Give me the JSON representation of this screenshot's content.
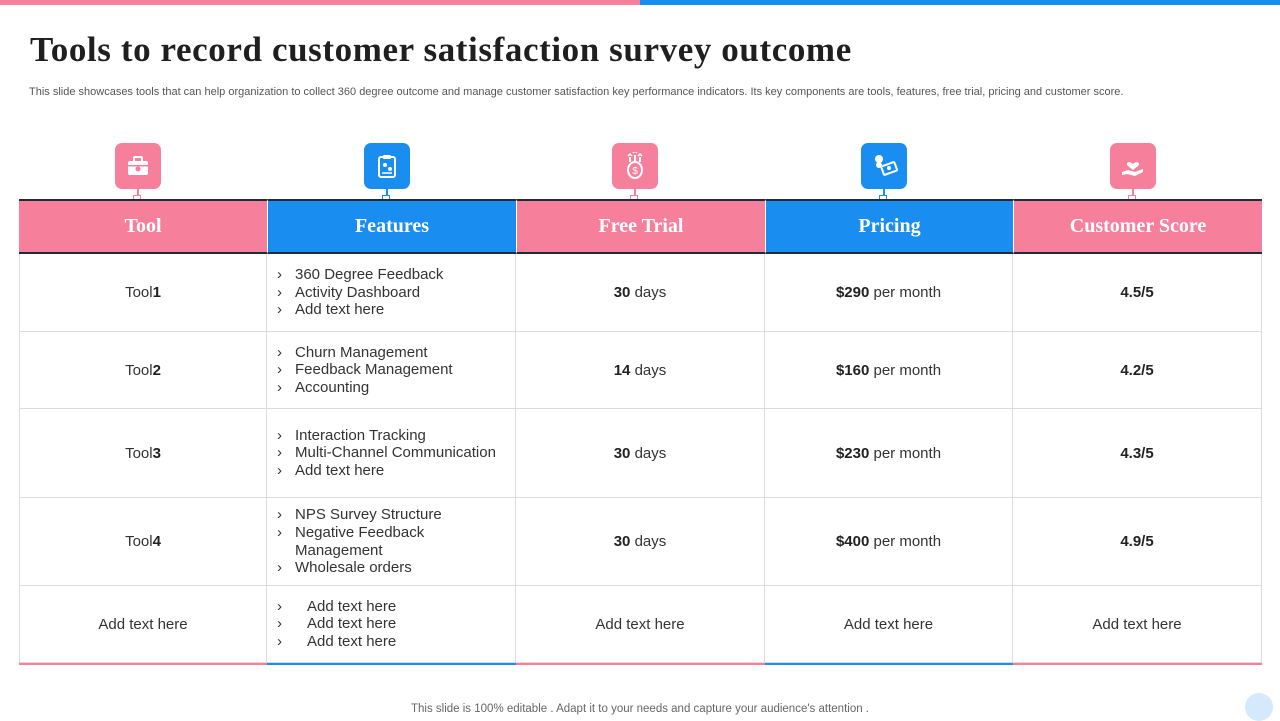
{
  "slide": {
    "title": "Tools to record customer satisfaction survey outcome",
    "subtitle": "This slide showcases tools that can help organization to collect 360 degree outcome and manage customer satisfaction key performance indicators. Its key components are tools, features, free trial, pricing and customer score.",
    "footer": "This slide is 100% editable . Adapt it to your needs and capture your audience's attention ."
  },
  "colors": {
    "pink": "#f67f9b",
    "blue": "#1a8ef0"
  },
  "columns": [
    {
      "label": "Tool",
      "icon": "toolbox-icon",
      "color": "pink"
    },
    {
      "label": "Features",
      "icon": "clipboard-icon",
      "color": "blue"
    },
    {
      "label": "Free Trial",
      "icon": "money-bag-icon",
      "color": "pink"
    },
    {
      "label": "Pricing",
      "icon": "cash-icon",
      "color": "blue"
    },
    {
      "label": "Customer Score",
      "icon": "hand-heart-icon",
      "color": "pink"
    }
  ],
  "rows": [
    {
      "tool_prefix": "Tool ",
      "tool_num": "1",
      "features": [
        "360 Degree Feedback",
        "Activity Dashboard",
        "Add text here"
      ],
      "trial_num": "30",
      "trial_unit": " days",
      "price": "$290",
      "price_unit": " per month",
      "score": "4.5/5"
    },
    {
      "tool_prefix": "Tool ",
      "tool_num": "2",
      "features": [
        "Churn Management",
        "Feedback Management",
        "Accounting"
      ],
      "trial_num": "14",
      "trial_unit": " days",
      "price": "$160",
      "price_unit": " per month",
      "score": "4.2/5"
    },
    {
      "tool_prefix": "Tool ",
      "tool_num": "3",
      "features": [
        "Interaction Tracking",
        "Multi-Channel Communication",
        "Add text here"
      ],
      "trial_num": "30",
      "trial_unit": " days",
      "price": "$230",
      "price_unit": " per month",
      "score": "4.3/5"
    },
    {
      "tool_prefix": "Tool ",
      "tool_num": "4",
      "features": [
        "NPS Survey Structure",
        "Negative Feedback Management",
        "Wholesale orders"
      ],
      "trial_num": "30",
      "trial_unit": " days",
      "price": "$400",
      "price_unit": " per month",
      "score": "4.9/5"
    }
  ],
  "last_row": {
    "tool": "Add text here",
    "features": [
      "Add text here",
      "Add text here",
      "Add text here"
    ],
    "trial": "Add text here",
    "price": "Add text here",
    "score": "Add text here"
  }
}
